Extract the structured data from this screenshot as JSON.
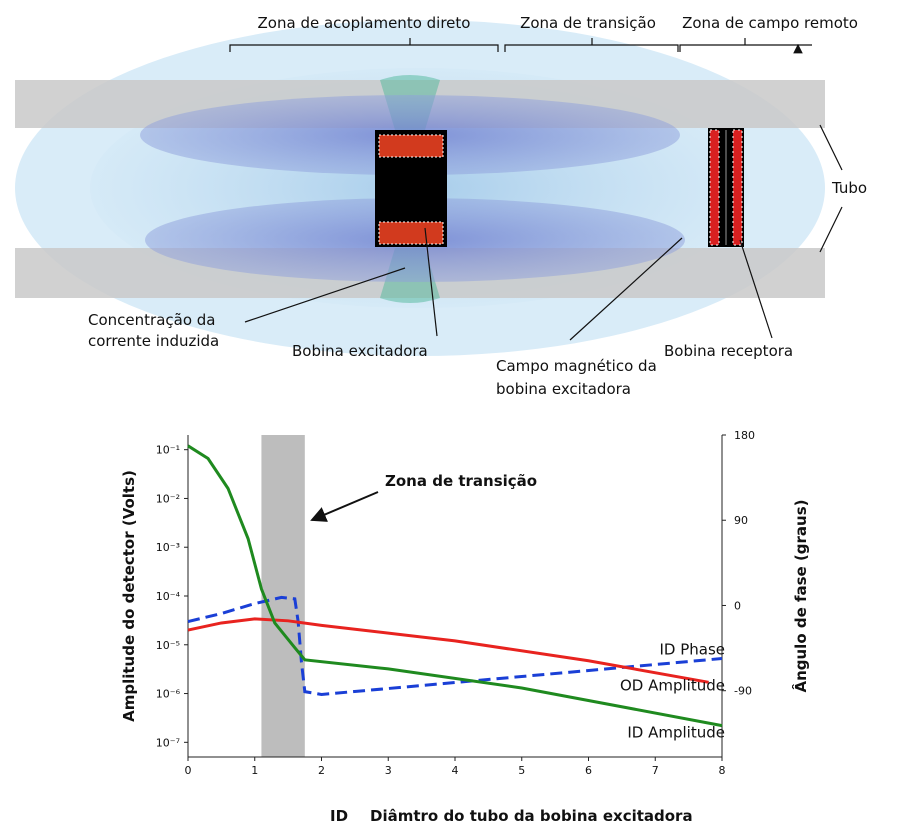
{
  "diagram": {
    "zones": [
      "Zona de acoplamento direto",
      "Zona de transição",
      "Zona de campo remoto"
    ],
    "labels": {
      "tube": "Tubo",
      "induced_current": [
        "Concentração da",
        "corrente induzida"
      ],
      "exciter": "Bobina excitadora",
      "field": [
        "Campo magnético da",
        "bobina excitadora"
      ],
      "receiver": "Bobina receptora"
    }
  },
  "chart_data": {
    "type": "line",
    "annotation": "Zona de transição",
    "xlabel_prefix": "ID",
    "xlabel": "Diâmtro do tubo da bobina excitadora",
    "ylabel": "Amplitude do detector (Volts)",
    "y2label": "Ângulo de fase (graus)",
    "log_y": true,
    "xlim": [
      0,
      8
    ],
    "xticks": [
      0,
      1,
      2,
      3,
      4,
      5,
      6,
      7,
      8
    ],
    "ylim": [
      5e-08,
      0.2
    ],
    "yticks": [
      {
        "value": 0.1,
        "label": "10⁻¹"
      },
      {
        "value": 0.01,
        "label": "10⁻²"
      },
      {
        "value": 0.001,
        "label": "10⁻³"
      },
      {
        "value": 0.0001,
        "label": "10⁻⁴"
      },
      {
        "value": 1e-05,
        "label": "10⁻⁵"
      },
      {
        "value": 1e-06,
        "label": "10⁻⁶"
      },
      {
        "value": 1e-07,
        "label": "10⁻⁷"
      }
    ],
    "y2lim": [
      -160,
      180
    ],
    "y2ticks": [
      180,
      90,
      0,
      -90
    ],
    "highlight_x": [
      1.1,
      1.75
    ],
    "series": [
      {
        "name": "ID Phase",
        "color": "#1a3fd6",
        "dashed": true,
        "axis": "y2",
        "x": [
          0,
          0.5,
          1,
          1.4,
          1.6,
          1.65,
          1.7,
          1.75,
          2,
          5,
          8
        ],
        "values": [
          -17,
          -8.5,
          2,
          8.5,
          7,
          -17,
          -60,
          -91,
          -94,
          -75,
          -56
        ]
      },
      {
        "name": "OD Amplitude",
        "color": "#e8231f",
        "x": [
          0,
          0.5,
          1,
          1.5,
          2,
          4,
          6,
          7.8
        ],
        "values": [
          2e-05,
          2.8e-05,
          3.4e-05,
          3.1e-05,
          2.5e-05,
          1.2e-05,
          4.7e-06,
          1.7e-06
        ]
      },
      {
        "name": "ID Amplitude",
        "color": "#1f8a1f",
        "x": [
          0,
          0.3,
          0.6,
          0.9,
          1.1,
          1.3,
          1.6,
          1.75,
          3,
          5,
          8
        ],
        "values": [
          0.12,
          0.066,
          0.016,
          0.0015,
          0.00014,
          2.8e-05,
          8.7e-06,
          4.9e-06,
          3.2e-06,
          1.3e-06,
          2.2e-07
        ]
      }
    ]
  }
}
